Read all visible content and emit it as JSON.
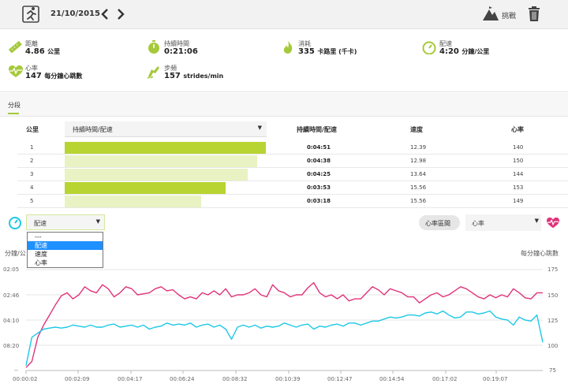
{
  "header": {
    "date": "21/10/2015",
    "challenge_label": "挑戰",
    "activity_icon": "running-icon"
  },
  "stats": [
    {
      "label": "距離",
      "value": "4.86",
      "unit": "公里",
      "icon": "ruler-icon"
    },
    {
      "label": "持續時間",
      "value": "0:21:06",
      "unit": "",
      "icon": "stopwatch-icon"
    },
    {
      "label": "消耗",
      "value": "335",
      "unit": "卡路里 (千卡)",
      "icon": "flame-icon"
    },
    {
      "label": "配速",
      "value": "4:20",
      "unit": "分鐘/公里",
      "icon": "gauge-icon"
    },
    {
      "label": "心率",
      "value": "147",
      "unit": "每分鐘心跳數",
      "icon": "heart-pulse-icon"
    },
    {
      "label": "步頻",
      "value": "157",
      "unit": "strides/min",
      "icon": "shoe-icon"
    }
  ],
  "splits": {
    "tab_label": "分段",
    "columns": {
      "km": "公里",
      "metric": "持續時間/配速",
      "pace": "持續時間/配速",
      "speed": "速度",
      "hr": "心率"
    },
    "rows": [
      {
        "km": "1",
        "pace": "0:04:51",
        "speed": "12.39",
        "hr": "140",
        "fraction": 1.0,
        "color": "#b8d432"
      },
      {
        "km": "2",
        "pace": "0:04:38",
        "speed": "12.98",
        "hr": "150",
        "fraction": 0.955,
        "color": "#e9f2c2"
      },
      {
        "km": "3",
        "pace": "0:04:25",
        "speed": "13.64",
        "hr": "144",
        "fraction": 0.91,
        "color": "#e9f2c2"
      },
      {
        "km": "4",
        "pace": "0:03:53",
        "speed": "15.56",
        "hr": "153",
        "fraction": 0.8,
        "color": "#b8d432"
      },
      {
        "km": "5",
        "pace": "0:03:18",
        "speed": "15.56",
        "hr": "149",
        "fraction": 0.68,
        "color": "#e9f2c2"
      }
    ]
  },
  "chart_controls": {
    "left_select": "配速",
    "dropdown_options": [
      "---",
      "配速",
      "速度",
      "心率"
    ],
    "dropdown_selected": 1,
    "hr_zone_button": "心率區間",
    "right_select": "心率"
  },
  "chart_data": {
    "type": "line",
    "ylabel_left": "分鐘/公",
    "ylabel_right": "每分鐘心跳數",
    "y_left_ticks": [
      "02:05",
      "02:46",
      "04:10",
      "08:20",
      "--"
    ],
    "y_right_ticks": [
      "175",
      "150",
      "125",
      "100",
      "75"
    ],
    "x_ticks": [
      "00:00:02",
      "00:02:09",
      "00:04:17",
      "00:06:24",
      "00:08:32",
      "00:10:39",
      "00:12:47",
      "00:14:54",
      "00:17:02",
      "00:19:07"
    ],
    "y_right_range": [
      75,
      175
    ],
    "series": [
      {
        "name": "心率",
        "axis": "right",
        "color": "#e0337a",
        "values": [
          78,
          84,
          108,
          120,
          130,
          140,
          149,
          152,
          146,
          150,
          158,
          154,
          152,
          160,
          156,
          148,
          152,
          158,
          156,
          150,
          151,
          152,
          156,
          158,
          154,
          155,
          150,
          146,
          148,
          146,
          152,
          150,
          154,
          150,
          156,
          148,
          150,
          150,
          152,
          156,
          150,
          148,
          160,
          154,
          152,
          148,
          150,
          150,
          157,
          162,
          152,
          148,
          150,
          146,
          150,
          144,
          146,
          146,
          152,
          158,
          155,
          150,
          156,
          154,
          152,
          148,
          148,
          142,
          146,
          150,
          152,
          148,
          150,
          154,
          158,
          156,
          152,
          148,
          146,
          150,
          147,
          150,
          148,
          156,
          152,
          147,
          146,
          152,
          152
        ]
      },
      {
        "name": "配速",
        "axis": "right",
        "color": "#1ec8e6",
        "values": [
          80,
          108,
          112,
          116,
          117,
          118,
          117,
          118,
          120,
          119,
          118,
          120,
          118,
          118,
          120,
          121,
          118,
          119,
          120,
          118,
          120,
          116,
          118,
          119,
          122,
          120,
          121,
          120,
          122,
          118,
          120,
          121,
          118,
          120,
          116,
          106,
          118,
          120,
          118,
          120,
          117,
          119,
          118,
          119,
          122,
          120,
          118,
          120,
          121,
          116,
          119,
          118,
          120,
          121,
          119,
          122,
          122,
          120,
          122,
          124,
          124,
          126,
          128,
          127,
          128,
          130,
          130,
          129,
          132,
          133,
          131,
          134,
          130,
          127,
          128,
          133,
          133,
          131,
          132,
          134,
          128,
          126,
          125,
          120,
          128,
          125,
          124,
          130,
          103
        ]
      }
    ]
  }
}
